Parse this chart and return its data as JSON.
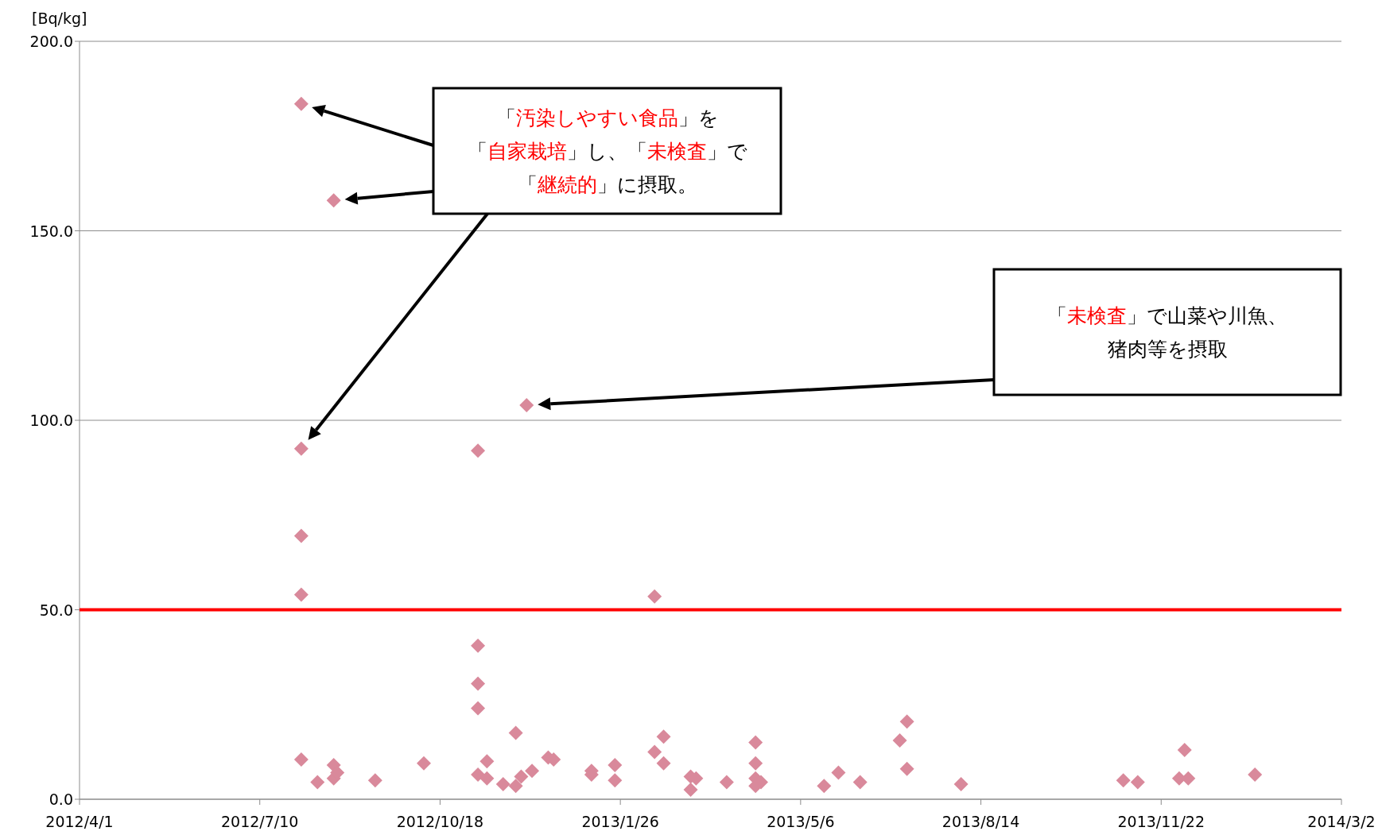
{
  "chart_data": {
    "type": "scatter",
    "ylabel": "[Bq/kg]",
    "marker": "diamond",
    "grid": "y",
    "x": [
      "2012-08-02",
      "2012-08-02",
      "2012-08-02",
      "2012-08-02",
      "2012-08-02",
      "2012-08-20",
      "2012-08-20",
      "2012-08-20",
      "2012-08-22",
      "2012-08-11",
      "2012-09-12",
      "2012-10-09",
      "2012-11-08",
      "2012-11-08",
      "2012-11-08",
      "2012-11-08",
      "2012-11-08",
      "2012-11-13",
      "2012-11-13",
      "2012-11-22",
      "2012-11-29",
      "2012-11-29",
      "2012-12-02",
      "2012-12-05",
      "2012-12-08",
      "2012-12-17",
      "2012-12-20",
      "2013-01-10",
      "2013-01-10",
      "2013-01-23",
      "2013-01-23",
      "2013-02-14",
      "2013-02-14",
      "2013-02-19",
      "2013-02-19",
      "2013-03-06",
      "2013-03-06",
      "2013-03-09",
      "2013-03-26",
      "2013-04-11",
      "2013-04-11",
      "2013-04-11",
      "2013-04-11",
      "2013-04-14",
      "2013-05-19",
      "2013-05-27",
      "2013-06-08",
      "2013-06-30",
      "2013-07-04",
      "2013-07-04",
      "2013-08-03",
      "2013-11-01",
      "2013-11-09",
      "2013-12-02",
      "2013-12-05",
      "2013-12-07",
      "2014-01-13"
    ],
    "series": [
      {
        "color": "#d9899b",
        "values": [
          183.5,
          92.5,
          69.5,
          54,
          10.5,
          158,
          9,
          5.5,
          7,
          4.5,
          5,
          9.5,
          92,
          40.5,
          30.5,
          24,
          6.5,
          10,
          5.5,
          4,
          17.5,
          3.5,
          6,
          104,
          7.5,
          11,
          10.5,
          6.5,
          7.5,
          9,
          5,
          53.5,
          12.5,
          16.5,
          9.5,
          6,
          2.5,
          5.5,
          4.5,
          15,
          9.5,
          5.5,
          3.5,
          4.5,
          3.5,
          7,
          4.5,
          15.5,
          20.5,
          8,
          4,
          5,
          4.5,
          5.5,
          13,
          5.5,
          6.5
        ]
      }
    ],
    "xlim": [
      "2012-04-01",
      "2014-03-02"
    ],
    "xticks": [
      {
        "value": "2012-04-01",
        "label": "2012/4/1"
      },
      {
        "value": "2012-07-10",
        "label": "2012/7/10"
      },
      {
        "value": "2012-10-18",
        "label": "2012/10/18"
      },
      {
        "value": "2013-01-26",
        "label": "2013/1/26"
      },
      {
        "value": "2013-05-06",
        "label": "2013/5/6"
      },
      {
        "value": "2013-08-14",
        "label": "2013/8/14"
      },
      {
        "value": "2013-11-22",
        "label": "2013/11/22"
      },
      {
        "value": "2014-03-02",
        "label": "2014/3/2"
      }
    ],
    "ylim": [
      0,
      200
    ],
    "yticks": [
      {
        "value": 0,
        "label": "0.0"
      },
      {
        "value": 50,
        "label": "50.0"
      },
      {
        "value": 100,
        "label": "100.0"
      },
      {
        "value": 150,
        "label": "150.0"
      },
      {
        "value": 200,
        "label": "200.0"
      }
    ],
    "ref_lines": [
      {
        "axis": "y",
        "value": 50,
        "color": "#ff0000"
      }
    ],
    "annotations": [
      "「**汚染しやすい食品**」を",
      "「**自家栽培**」し、「**未検査**」で",
      "「**継続的**」に摂取。",
      "「**未検査**」で山菜や川魚、",
      "猪肉等を摂取"
    ]
  }
}
